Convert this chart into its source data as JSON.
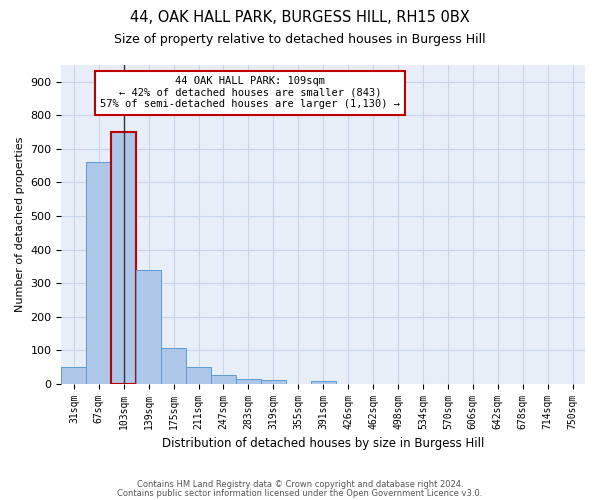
{
  "title_line1": "44, OAK HALL PARK, BURGESS HILL, RH15 0BX",
  "title_line2": "Size of property relative to detached houses in Burgess Hill",
  "xlabel": "Distribution of detached houses by size in Burgess Hill",
  "ylabel": "Number of detached properties",
  "footer_line1": "Contains HM Land Registry data © Crown copyright and database right 2024.",
  "footer_line2": "Contains public sector information licensed under the Open Government Licence v3.0.",
  "bin_labels": [
    "31sqm",
    "67sqm",
    "103sqm",
    "139sqm",
    "175sqm",
    "211sqm",
    "247sqm",
    "283sqm",
    "319sqm",
    "355sqm",
    "391sqm",
    "426sqm",
    "462sqm",
    "498sqm",
    "534sqm",
    "570sqm",
    "606sqm",
    "642sqm",
    "678sqm",
    "714sqm",
    "750sqm"
  ],
  "bar_values": [
    50,
    660,
    750,
    340,
    107,
    50,
    25,
    15,
    12,
    0,
    8,
    0,
    0,
    0,
    0,
    0,
    0,
    0,
    0,
    0,
    0
  ],
  "bar_color": "#aec6e8",
  "bar_edge_color": "#5b9bd5",
  "highlight_bar_index": 2,
  "highlight_bar_edge_color": "#c00000",
  "annotation_text_line1": "44 OAK HALL PARK: 109sqm",
  "annotation_text_line2": "← 42% of detached houses are smaller (843)",
  "annotation_text_line3": "57% of semi-detached houses are larger (1,130) →",
  "vline_x": 2,
  "ylim": [
    0,
    950
  ],
  "yticks": [
    0,
    100,
    200,
    300,
    400,
    500,
    600,
    700,
    800,
    900
  ],
  "background_color": "#ffffff",
  "grid_color": "#c8d4e8",
  "axes_background": "#e8eef8"
}
